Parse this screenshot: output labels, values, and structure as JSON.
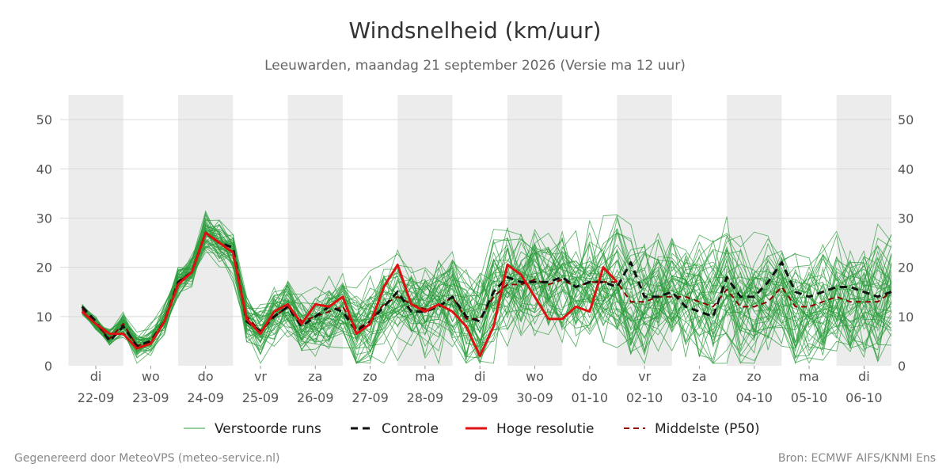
{
  "header": {
    "title": "Windsnelheid (km/uur)",
    "subtitle": "Leeuwarden, maandag 21 september 2026 (Versie ma 12 uur)"
  },
  "footer": {
    "left": "Gegenereerd door MeteoVPS (meteo-service.nl)",
    "right": "Bron: ECMWF AIFS/KNMI Ens"
  },
  "colors": {
    "members": "#2e9e3e",
    "control": "#111111",
    "hires": "#dd1111",
    "median": "#8b0000",
    "shade": "#ececec",
    "grid": "#d9d9d9"
  },
  "chart_data": {
    "type": "line",
    "title": "Windsnelheid (km/uur)",
    "ylim": [
      0,
      55
    ],
    "yticks": [
      0,
      10,
      20,
      30,
      40,
      50
    ],
    "grid": true,
    "legend_position": "bottom",
    "x_range_days": [
      -0.65,
      14.5
    ],
    "day_labels": [
      {
        "weekday": "di",
        "date": "22-09"
      },
      {
        "weekday": "wo",
        "date": "23-09"
      },
      {
        "weekday": "do",
        "date": "24-09"
      },
      {
        "weekday": "vr",
        "date": "25-09"
      },
      {
        "weekday": "za",
        "date": "26-09"
      },
      {
        "weekday": "zo",
        "date": "27-09"
      },
      {
        "weekday": "ma",
        "date": "28-09"
      },
      {
        "weekday": "di",
        "date": "29-09"
      },
      {
        "weekday": "wo",
        "date": "30-09"
      },
      {
        "weekday": "do",
        "date": "01-10"
      },
      {
        "weekday": "vr",
        "date": "02-10"
      },
      {
        "weekday": "za",
        "date": "03-10"
      },
      {
        "weekday": "zo",
        "date": "04-10"
      },
      {
        "weekday": "ma",
        "date": "05-10"
      },
      {
        "weekday": "di",
        "date": "06-10"
      }
    ],
    "legend": [
      {
        "key": "members",
        "label": "Verstoorde runs"
      },
      {
        "key": "control",
        "label": "Controle"
      },
      {
        "key": "hires",
        "label": "Hoge resolutie"
      },
      {
        "key": "median",
        "label": "Middelste (P50)"
      }
    ],
    "x_step_days": 0.25,
    "series": [
      {
        "key": "control",
        "x_start_days": -0.25,
        "values": [
          12,
          9,
          5,
          8,
          4,
          5,
          9,
          17,
          19,
          27,
          25,
          24,
          9,
          7,
          10,
          12,
          8,
          10,
          12,
          11,
          7,
          9,
          12,
          15,
          11,
          11,
          12,
          14,
          10,
          9,
          15,
          18,
          17,
          17,
          17,
          18,
          16,
          17,
          17,
          16,
          21,
          14,
          14,
          15,
          12,
          11,
          10,
          18,
          14,
          14,
          17,
          21,
          15,
          14,
          15,
          16,
          16,
          15,
          14,
          15
        ]
      },
      {
        "key": "hires",
        "x_start_days": -0.25,
        "values": [
          11,
          8.5,
          6.5,
          6.5,
          3.5,
          4.5,
          9,
          16.5,
          19,
          27,
          25,
          23,
          9.5,
          6.5,
          11,
          12.5,
          8.5,
          12.5,
          12,
          14,
          6.5,
          8.5,
          16,
          20.5,
          12.5,
          11,
          12.5,
          11,
          8,
          2,
          8,
          20.5,
          18.5,
          14,
          9.5,
          9.5,
          12,
          11,
          20,
          17
        ]
      },
      {
        "key": "median",
        "x_start_days": -0.25,
        "values": [
          11.5,
          8.5,
          5.5,
          8.5,
          4,
          5,
          9,
          17,
          19,
          27,
          25,
          23,
          10,
          7,
          10,
          12,
          9,
          10,
          11,
          12,
          7.5,
          9,
          12.5,
          14,
          12.5,
          11.5,
          12,
          14,
          9.5,
          9.5,
          14,
          16.5,
          16.5,
          17.5,
          16.5,
          17.5,
          16,
          17,
          17,
          17,
          13,
          13,
          14,
          14,
          14,
          13,
          12,
          15.5,
          12,
          12,
          13,
          16,
          12,
          12,
          13,
          14,
          13,
          13,
          13,
          15
        ]
      }
    ]
  }
}
